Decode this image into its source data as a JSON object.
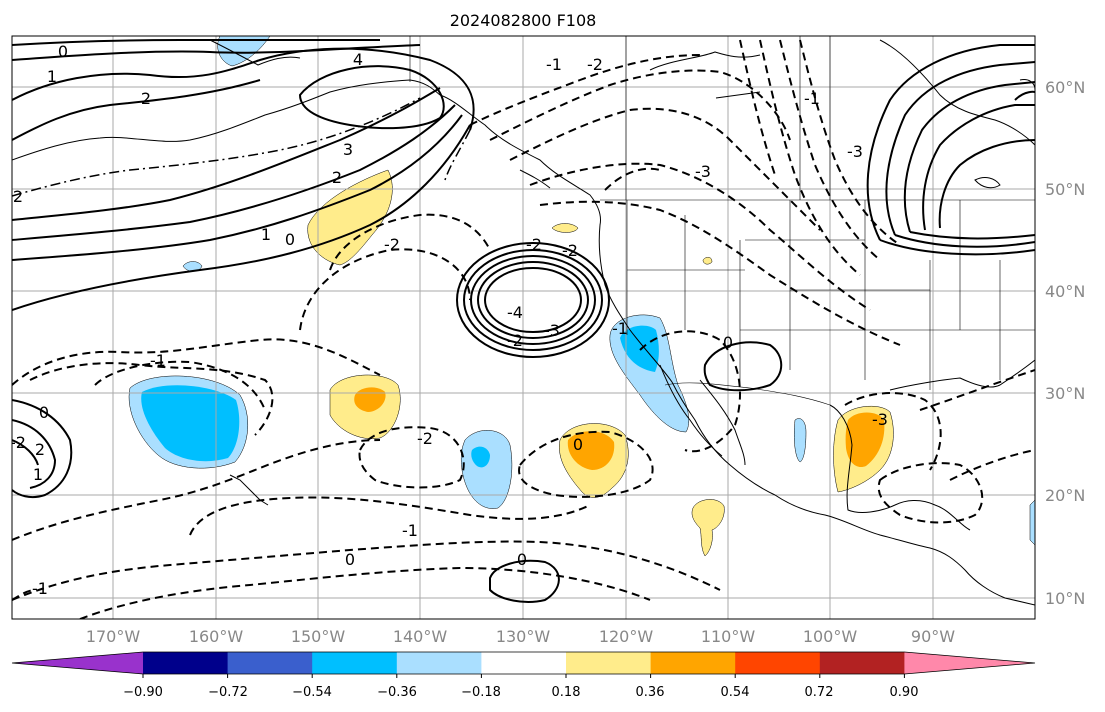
{
  "title": "2024082800 F108",
  "lon_labels": [
    "170°W",
    "160°W",
    "150°W",
    "140°W",
    "130°W",
    "120°W",
    "110°W",
    "100°W",
    "90°W"
  ],
  "lat_labels": [
    "60°N",
    "50°N",
    "40°N",
    "30°N",
    "20°N",
    "10°N"
  ],
  "colorbar": {
    "colors": [
      "#9932cc",
      "#00008b",
      "#3a5fcd",
      "#00bfff",
      "#aadfff",
      "#ffffff",
      "#ffec8b",
      "#ffa500",
      "#ff4500",
      "#b22222",
      "#ff88aa"
    ],
    "tick_labels": [
      "−0.90",
      "−0.72",
      "−0.54",
      "−0.36",
      "−0.18",
      "0.18",
      "0.36",
      "0.54",
      "0.72",
      "0.90"
    ]
  },
  "contour_labels": [
    "0",
    "1",
    "2",
    "4",
    "3",
    "2",
    "1",
    "0",
    "-1",
    "-2",
    "-3",
    "-4",
    "-3",
    "-2",
    "-2",
    "-1",
    "-1",
    "0",
    "0",
    "0",
    "0",
    "-3",
    "-2",
    "-1",
    "-2",
    "-2",
    "-1",
    "-3",
    "1",
    "0",
    "-2",
    "2",
    "2",
    "-1"
  ]
}
